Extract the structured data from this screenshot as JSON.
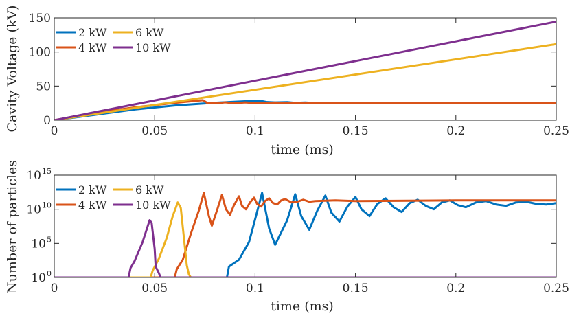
{
  "chart_data": [
    {
      "type": "line",
      "xlabel": "time (ms)",
      "ylabel": "Cavity Voltage (kV)",
      "xlim": [
        0,
        0.25
      ],
      "ylim": [
        0,
        150
      ],
      "x_ticks": [
        0,
        0.05,
        0.1,
        0.15,
        0.2,
        0.25
      ],
      "x_tick_labels": [
        "0",
        "0.05",
        "0.1",
        "0.15",
        "0.2",
        "0.25"
      ],
      "y_ticks": [
        0,
        50,
        100,
        150
      ],
      "y_tick_labels": [
        "0",
        "50",
        "100",
        "150"
      ],
      "legend_position": "top-left",
      "series": [
        {
          "name": "2 kW",
          "color": "#0072BD",
          "points": [
            [
              0,
              0
            ],
            [
              0.02,
              7.8
            ],
            [
              0.04,
              15.7
            ],
            [
              0.06,
              21.5
            ],
            [
              0.08,
              25.5
            ],
            [
              0.1,
              28.4
            ],
            [
              0.103,
              28.2
            ],
            [
              0.106,
              26.5
            ],
            [
              0.11,
              26.0
            ],
            [
              0.116,
              26.4
            ],
            [
              0.12,
              25.4
            ],
            [
              0.125,
              25.9
            ],
            [
              0.13,
              25.2
            ],
            [
              0.15,
              25.4
            ],
            [
              0.2,
              25.2
            ],
            [
              0.25,
              25.3
            ]
          ]
        },
        {
          "name": "4 kW",
          "color": "#D95319",
          "points": [
            [
              0,
              0
            ],
            [
              0.02,
              10.4
            ],
            [
              0.04,
              18.8
            ],
            [
              0.06,
              25.4
            ],
            [
              0.074,
              29.3
            ],
            [
              0.076,
              25.6
            ],
            [
              0.081,
              24.6
            ],
            [
              0.085,
              26.2
            ],
            [
              0.09,
              24.8
            ],
            [
              0.095,
              26.0
            ],
            [
              0.1,
              25.1
            ],
            [
              0.11,
              25.8
            ],
            [
              0.12,
              25.2
            ],
            [
              0.15,
              25.5
            ],
            [
              0.2,
              25.3
            ],
            [
              0.25,
              25.3
            ]
          ]
        },
        {
          "name": "6 kW",
          "color": "#EDB120",
          "points": [
            [
              0,
              0
            ],
            [
              0.25,
              111.5
            ]
          ]
        },
        {
          "name": "10 kW",
          "color": "#7E2F8E",
          "points": [
            [
              0,
              0
            ],
            [
              0.25,
              144.5
            ]
          ]
        }
      ]
    },
    {
      "type": "line",
      "xlabel": "time (ms)",
      "ylabel": "Number of particles",
      "xlim": [
        0,
        0.25
      ],
      "yscale": "log",
      "ylim": [
        1,
        1000000000000000.0
      ],
      "x_ticks": [
        0,
        0.05,
        0.1,
        0.15,
        0.2,
        0.25
      ],
      "x_tick_labels": [
        "0",
        "0.05",
        "0.1",
        "0.15",
        "0.2",
        "0.25"
      ],
      "y_ticks": [
        1,
        100000.0,
        10000000000.0,
        1000000000000000.0
      ],
      "y_tick_labels": [
        {
          "base": "10",
          "exp": "0"
        },
        {
          "base": "10",
          "exp": "5"
        },
        {
          "base": "10",
          "exp": "10"
        },
        {
          "base": "10",
          "exp": "15"
        }
      ],
      "legend_position": "top-left",
      "series": [
        {
          "name": "2 kW",
          "color": "#0072BD",
          "units": "log10 of count",
          "points": [
            [
              0,
              0
            ],
            [
              0.086,
              0
            ],
            [
              0.087,
              1.6
            ],
            [
              0.092,
              2.6
            ],
            [
              0.097,
              5.2
            ],
            [
              0.1,
              8.5
            ],
            [
              0.1035,
              12.4
            ],
            [
              0.107,
              7.2
            ],
            [
              0.11,
              4.8
            ],
            [
              0.116,
              8.4
            ],
            [
              0.12,
              12.2
            ],
            [
              0.123,
              9.0
            ],
            [
              0.127,
              7.0
            ],
            [
              0.131,
              9.8
            ],
            [
              0.135,
              12.0
            ],
            [
              0.138,
              9.5
            ],
            [
              0.142,
              8.2
            ],
            [
              0.146,
              10.4
            ],
            [
              0.15,
              11.8
            ],
            [
              0.153,
              10.0
            ],
            [
              0.157,
              9.0
            ],
            [
              0.161,
              10.8
            ],
            [
              0.165,
              11.6
            ],
            [
              0.169,
              10.3
            ],
            [
              0.173,
              9.6
            ],
            [
              0.177,
              10.9
            ],
            [
              0.181,
              11.4
            ],
            [
              0.185,
              10.5
            ],
            [
              0.189,
              10.0
            ],
            [
              0.193,
              11.0
            ],
            [
              0.197,
              11.3
            ],
            [
              0.201,
              10.6
            ],
            [
              0.205,
              10.3
            ],
            [
              0.21,
              11.0
            ],
            [
              0.215,
              11.2
            ],
            [
              0.22,
              10.7
            ],
            [
              0.225,
              10.5
            ],
            [
              0.23,
              11.0
            ],
            [
              0.235,
              11.1
            ],
            [
              0.24,
              10.8
            ],
            [
              0.245,
              10.7
            ],
            [
              0.25,
              10.9
            ]
          ]
        },
        {
          "name": "4 kW",
          "color": "#D95319",
          "units": "log10 of count",
          "points": [
            [
              0,
              0
            ],
            [
              0.06,
              0
            ],
            [
              0.061,
              1.2
            ],
            [
              0.064,
              2.6
            ],
            [
              0.068,
              6.4
            ],
            [
              0.072,
              9.8
            ],
            [
              0.0745,
              12.4
            ],
            [
              0.077,
              9.0
            ],
            [
              0.0785,
              7.6
            ],
            [
              0.081,
              9.8
            ],
            [
              0.0835,
              12.1
            ],
            [
              0.0855,
              10.0
            ],
            [
              0.0875,
              9.2
            ],
            [
              0.0895,
              10.6
            ],
            [
              0.092,
              11.9
            ],
            [
              0.0935,
              10.5
            ],
            [
              0.0955,
              10.0
            ],
            [
              0.0975,
              11.0
            ],
            [
              0.0995,
              11.7
            ],
            [
              0.101,
              10.8
            ],
            [
              0.103,
              10.4
            ],
            [
              0.105,
              11.2
            ],
            [
              0.107,
              11.6
            ],
            [
              0.109,
              10.9
            ],
            [
              0.111,
              10.7
            ],
            [
              0.113,
              11.3
            ],
            [
              0.115,
              11.5
            ],
            [
              0.118,
              11.0
            ],
            [
              0.121,
              11.1
            ],
            [
              0.124,
              11.4
            ],
            [
              0.127,
              11.1
            ],
            [
              0.13,
              11.2
            ],
            [
              0.14,
              11.3
            ],
            [
              0.15,
              11.2
            ],
            [
              0.2,
              11.3
            ],
            [
              0.25,
              11.3
            ]
          ]
        },
        {
          "name": "6 kW",
          "color": "#EDB120",
          "units": "log10 of count",
          "points": [
            [
              0,
              0
            ],
            [
              0.048,
              0
            ],
            [
              0.049,
              1.0
            ],
            [
              0.052,
              2.7
            ],
            [
              0.056,
              5.8
            ],
            [
              0.059,
              9.0
            ],
            [
              0.0615,
              11.0
            ],
            [
              0.063,
              10.2
            ],
            [
              0.0645,
              6.0
            ],
            [
              0.066,
              1.8
            ],
            [
              0.067,
              0.5
            ],
            [
              0.068,
              0
            ],
            [
              0.25,
              0
            ]
          ]
        },
        {
          "name": "10 kW",
          "color": "#7E2F8E",
          "units": "log10 of count",
          "points": [
            [
              0,
              0
            ],
            [
              0.037,
              0
            ],
            [
              0.038,
              1.4
            ],
            [
              0.04,
              2.4
            ],
            [
              0.044,
              5.2
            ],
            [
              0.0475,
              8.4
            ],
            [
              0.0485,
              8.0
            ],
            [
              0.05,
              4.2
            ],
            [
              0.0505,
              1.6
            ],
            [
              0.052,
              0.7
            ],
            [
              0.053,
              0
            ],
            [
              0.25,
              0
            ]
          ]
        }
      ]
    }
  ]
}
